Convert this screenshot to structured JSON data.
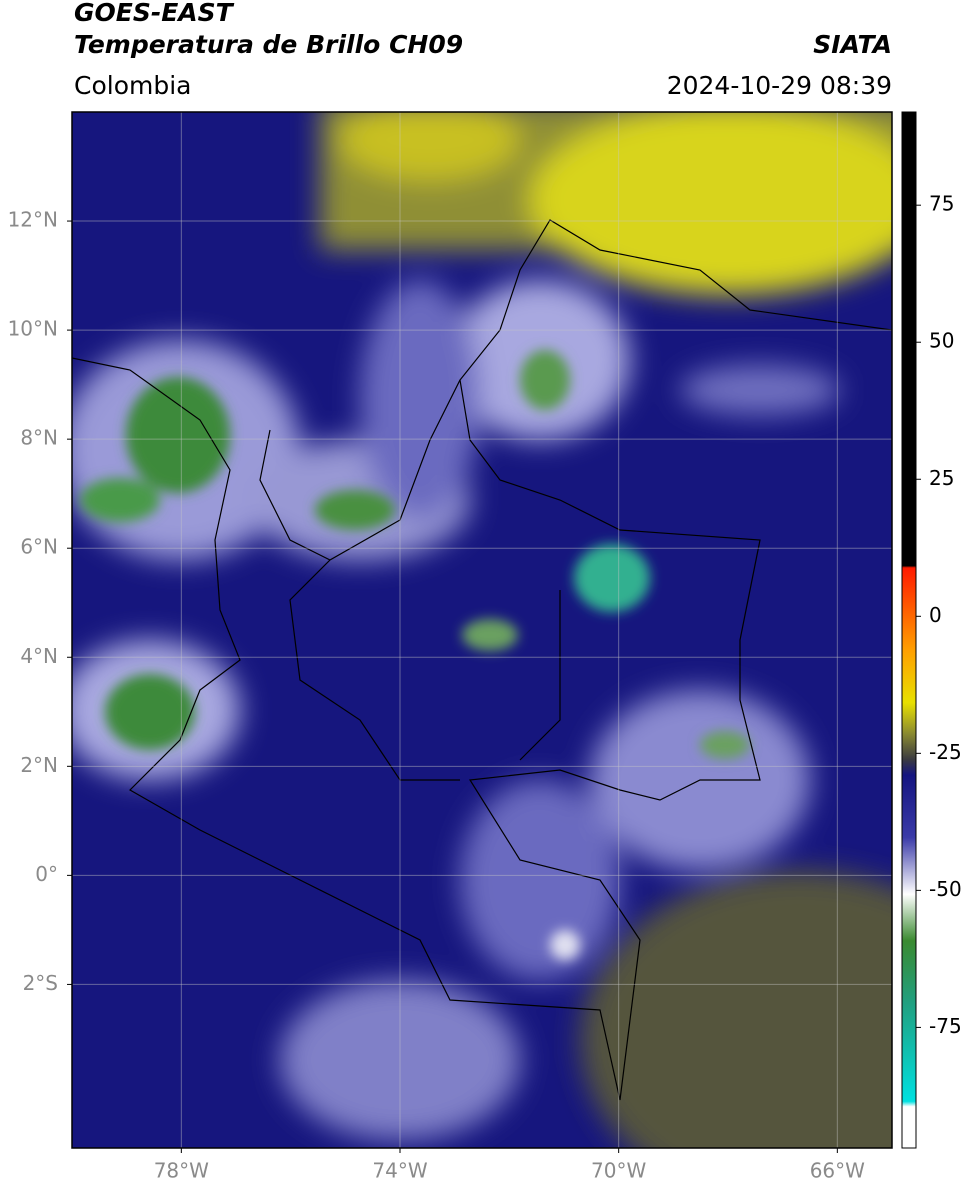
{
  "header": {
    "title": "GOES-EAST",
    "subtitle": "Temperatura de Brillo CH09",
    "source": "SIATA",
    "region": "Colombia",
    "timestamp": "2024-10-29 08:39"
  },
  "map": {
    "xlim": [
      -80,
      -65
    ],
    "ylim": [
      -5,
      14
    ],
    "grid": true,
    "xticks": [
      {
        "value": -78,
        "label": "78°W"
      },
      {
        "value": -74,
        "label": "74°W"
      },
      {
        "value": -70,
        "label": "70°W"
      },
      {
        "value": -66,
        "label": "66°W"
      }
    ],
    "yticks": [
      {
        "value": 12,
        "label": "12°N"
      },
      {
        "value": 10,
        "label": "10°N"
      },
      {
        "value": 8,
        "label": "8°N"
      },
      {
        "value": 6,
        "label": "6°N"
      },
      {
        "value": 4,
        "label": "4°N"
      },
      {
        "value": 2,
        "label": "2°N"
      },
      {
        "value": 0,
        "label": "0°"
      },
      {
        "value": -2,
        "label": "2°S"
      }
    ]
  },
  "colorbar": {
    "lim": [
      -97,
      92
    ],
    "ticks": [
      75,
      50,
      25,
      0,
      -25,
      -50,
      -75
    ]
  }
}
